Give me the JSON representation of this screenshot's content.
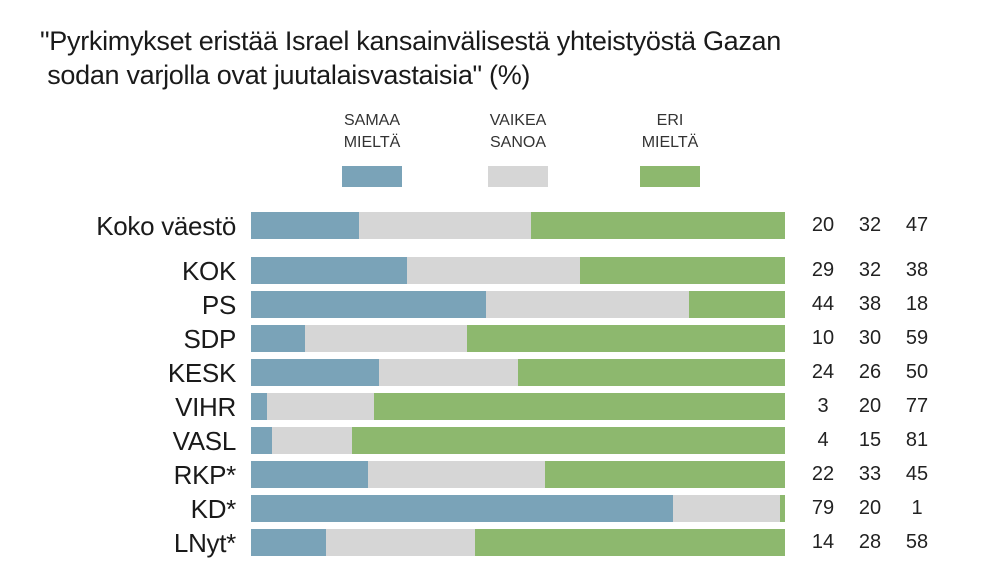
{
  "chart_data": {
    "type": "bar",
    "orientation": "horizontal",
    "stacked": true,
    "title": "\"Pyrkimykset eristää Israel kansainvälisestä yhteistyöstä Gazan\n sodan varjolla ovat juutalaisvastaisia\" (%)",
    "categories": [
      "Koko väestö",
      "KOK",
      "PS",
      "SDP",
      "KESK",
      "VIHR",
      "VASL",
      "RKP*",
      "KD*",
      "LNyt*"
    ],
    "series": [
      {
        "name": "SAMAA MIELTÄ",
        "label_lines": [
          "SAMAA",
          "MIELTÄ"
        ],
        "color": "#7aa3b8",
        "values": [
          20,
          29,
          44,
          10,
          24,
          3,
          4,
          22,
          79,
          14
        ]
      },
      {
        "name": "VAIKEA SANOA",
        "label_lines": [
          "VAIKEA",
          "SANOA"
        ],
        "color": "#d6d6d6",
        "values": [
          32,
          32,
          38,
          30,
          26,
          20,
          15,
          33,
          20,
          28
        ]
      },
      {
        "name": "ERI MIELTÄ",
        "label_lines": [
          "ERI",
          "MIELTÄ"
        ],
        "color": "#8db86e",
        "values": [
          47,
          38,
          18,
          59,
          50,
          77,
          81,
          45,
          1,
          58
        ]
      }
    ],
    "xlim": [
      0,
      100
    ],
    "legend": "top-center",
    "grid": false,
    "xlabel": "",
    "ylabel": ""
  }
}
